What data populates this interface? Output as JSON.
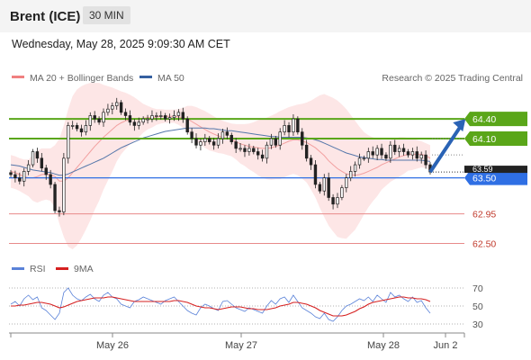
{
  "header": {
    "title": "Brent (ICE)",
    "timeframe": "30 MIN",
    "datetime": "Wednesday, May 28, 2025 9:09:30 AM CET"
  },
  "legend": {
    "ma20": "MA 20 + Bollinger Bands",
    "ma50": "MA 50",
    "credit": "Research © 2025 Trading Central"
  },
  "colors": {
    "green": "#5aa619",
    "blue": "#2f6fe4",
    "red": "#e88a8a",
    "candle_up": "#2f7d2f",
    "candle_down": "#c0392b",
    "band_fill": "#fde3e3",
    "ma50": "#5577aa",
    "ma20": "#f2a0a0",
    "arrow": "#2a63b5"
  },
  "chart_data": [
    {
      "type": "candlestick",
      "series_notes": "Price chart with MA 20, Bollinger Bands, MA 50 and support/resistance levels",
      "ylim": [
        62.3,
        64.8
      ],
      "x_ticks": [
        "May 26",
        "May 27",
        "May 28",
        "Jun 2"
      ],
      "levels": [
        {
          "value": 64.4,
          "label": "64.40",
          "kind": "resistance"
        },
        {
          "value": 64.1,
          "label": "64.10",
          "kind": "resistance"
        },
        {
          "value": 63.5,
          "label": "63.50",
          "kind": "pivot"
        },
        {
          "value": 62.95,
          "label": "62.95",
          "kind": "support"
        },
        {
          "value": 62.5,
          "label": "62.50",
          "kind": "support"
        }
      ],
      "current_price_label": "63.59",
      "close": [
        63.55,
        63.5,
        63.45,
        63.6,
        63.7,
        63.9,
        63.8,
        63.65,
        63.55,
        63.4,
        63.0,
        62.98,
        63.8,
        64.3,
        64.3,
        64.25,
        64.2,
        64.3,
        64.45,
        64.4,
        64.35,
        64.5,
        64.55,
        64.6,
        64.65,
        64.5,
        64.45,
        64.35,
        64.3,
        64.35,
        64.4,
        64.4,
        64.45,
        64.45,
        64.45,
        64.4,
        64.42,
        64.45,
        64.5,
        64.4,
        64.2,
        64.1,
        64.0,
        64.05,
        64.1,
        64.05,
        64.0,
        64.1,
        64.2,
        64.15,
        64.05,
        63.95,
        63.95,
        63.9,
        63.95,
        63.9,
        63.85,
        63.8,
        64.0,
        64.1,
        64.0,
        64.2,
        64.3,
        64.2,
        64.4,
        64.2,
        64.0,
        63.8,
        63.7,
        63.4,
        63.3,
        63.5,
        63.2,
        63.1,
        63.2,
        63.35,
        63.5,
        63.6,
        63.7,
        63.8,
        63.8,
        63.9,
        63.85,
        63.95,
        63.85,
        63.8,
        64.0,
        63.9,
        63.95,
        63.9,
        63.85,
        63.9,
        63.8,
        63.85,
        63.7,
        63.59
      ],
      "ma20": [
        63.6,
        63.58,
        63.55,
        63.52,
        63.5,
        63.5,
        63.52,
        63.55,
        63.56,
        63.55,
        63.52,
        63.45,
        63.45,
        63.5,
        63.58,
        63.66,
        63.74,
        63.82,
        63.9,
        63.98,
        64.05,
        64.12,
        64.18,
        64.24,
        64.3,
        64.34,
        64.37,
        64.39,
        64.4,
        64.4,
        64.41,
        64.42,
        64.42,
        64.43,
        64.44,
        64.44,
        64.44,
        64.44,
        64.43,
        64.42,
        64.4,
        64.36,
        64.32,
        64.28,
        64.24,
        64.2,
        64.17,
        64.14,
        64.12,
        64.1,
        64.08,
        64.05,
        64.02,
        64.0,
        63.98,
        63.97,
        63.96,
        63.95,
        63.95,
        63.96,
        63.98,
        64.0,
        64.03,
        64.06,
        64.08,
        64.08,
        64.06,
        64.04,
        64.0,
        63.96,
        63.9,
        63.84,
        63.76,
        63.7,
        63.64,
        63.6,
        63.56,
        63.55,
        63.54,
        63.55,
        63.57,
        63.6,
        63.63,
        63.66,
        63.7,
        63.73,
        63.76,
        63.79,
        63.82,
        63.84,
        63.86,
        63.86,
        63.86,
        63.86,
        63.84,
        63.8
      ],
      "boll_upper": [
        63.85,
        63.83,
        63.8,
        63.78,
        63.78,
        63.85,
        63.92,
        63.95,
        63.95,
        63.95,
        64.0,
        64.1,
        64.3,
        64.55,
        64.75,
        64.85,
        64.9,
        64.93,
        64.95,
        64.95,
        64.95,
        64.92,
        64.9,
        64.88,
        64.85,
        64.82,
        64.8,
        64.77,
        64.73,
        64.68,
        64.63,
        64.6,
        64.57,
        64.55,
        64.55,
        64.54,
        64.54,
        64.54,
        64.55,
        64.57,
        64.6,
        64.6,
        64.58,
        64.55,
        64.52,
        64.48,
        64.44,
        64.4,
        64.37,
        64.35,
        64.33,
        64.32,
        64.32,
        64.32,
        64.33,
        64.35,
        64.38,
        64.4,
        64.42,
        64.45,
        64.48,
        64.52,
        64.55,
        64.58,
        64.6,
        64.62,
        64.63,
        64.65,
        64.68,
        64.72,
        64.76,
        64.78,
        64.75,
        64.72,
        64.68,
        64.62,
        64.55,
        64.46,
        64.37,
        64.28,
        64.2,
        64.15,
        64.12,
        64.1,
        64.08,
        64.08,
        64.08,
        64.1,
        64.12,
        64.12,
        64.11,
        64.1,
        64.08,
        64.06,
        64.03,
        64.0
      ],
      "boll_lower": [
        63.35,
        63.33,
        63.3,
        63.26,
        63.22,
        63.15,
        63.12,
        63.15,
        63.17,
        63.15,
        63.04,
        62.8,
        62.6,
        62.45,
        62.41,
        62.47,
        62.58,
        62.71,
        62.85,
        63.01,
        63.15,
        63.32,
        63.46,
        63.6,
        63.75,
        63.86,
        63.94,
        64.01,
        64.07,
        64.12,
        64.19,
        64.24,
        64.27,
        64.31,
        64.33,
        64.34,
        64.34,
        64.34,
        64.31,
        64.27,
        64.2,
        64.12,
        64.06,
        64.01,
        63.96,
        63.92,
        63.9,
        63.88,
        63.87,
        63.85,
        63.83,
        63.78,
        63.72,
        63.68,
        63.63,
        63.59,
        63.54,
        63.5,
        63.48,
        63.47,
        63.48,
        63.48,
        63.51,
        63.54,
        63.56,
        63.54,
        63.49,
        63.43,
        63.32,
        63.2,
        63.04,
        62.9,
        62.77,
        62.68,
        62.6,
        62.58,
        62.57,
        62.64,
        62.71,
        62.82,
        62.94,
        63.05,
        63.14,
        63.22,
        63.32,
        63.38,
        63.44,
        63.48,
        63.52,
        63.56,
        63.61,
        63.62,
        63.64,
        63.66,
        63.65,
        63.6
      ],
      "ma50": [
        63.7,
        63.69,
        63.68,
        63.66,
        63.64,
        63.62,
        63.61,
        63.6,
        63.59,
        63.58,
        63.56,
        63.54,
        63.54,
        63.56,
        63.59,
        63.62,
        63.65,
        63.68,
        63.71,
        63.74,
        63.77,
        63.8,
        63.84,
        63.88,
        63.92,
        63.96,
        63.99,
        64.02,
        64.05,
        64.08,
        64.11,
        64.13,
        64.15,
        64.17,
        64.19,
        64.21,
        64.22,
        64.23,
        64.24,
        64.25,
        64.26,
        64.26,
        64.26,
        64.26,
        64.26,
        64.25,
        64.25,
        64.24,
        64.23,
        64.22,
        64.22,
        64.21,
        64.2,
        64.19,
        64.18,
        64.17,
        64.16,
        64.15,
        64.14,
        64.13,
        64.13,
        64.12,
        64.12,
        64.12,
        64.12,
        64.12,
        64.12,
        64.11,
        64.1,
        64.08,
        64.06,
        64.03,
        64.0,
        63.97,
        63.94,
        63.91,
        63.88,
        63.86,
        63.84,
        63.82,
        63.81,
        63.8,
        63.79,
        63.78,
        63.78,
        63.77,
        63.77,
        63.77,
        63.77,
        63.77,
        63.77,
        63.77,
        63.77,
        63.77,
        63.76,
        63.75
      ],
      "arrow": {
        "from_index": 95,
        "from_value": 63.59,
        "to_index": 103,
        "to_value": 64.4
      }
    },
    {
      "type": "line",
      "series": [
        {
          "name": "RSI",
          "values": [
            52,
            55,
            50,
            58,
            62,
            57,
            60,
            48,
            45,
            40,
            35,
            42,
            65,
            70,
            62,
            58,
            56,
            60,
            63,
            58,
            55,
            62,
            65,
            60,
            58,
            52,
            50,
            48,
            55,
            57,
            60,
            58,
            56,
            54,
            52,
            56,
            58,
            60,
            55,
            50,
            45,
            42,
            40,
            48,
            52,
            50,
            47,
            45,
            55,
            56,
            52,
            48,
            46,
            44,
            48,
            46,
            44,
            42,
            50,
            56,
            52,
            58,
            60,
            54,
            62,
            55,
            48,
            45,
            42,
            38,
            36,
            42,
            35,
            33,
            38,
            45,
            50,
            52,
            55,
            58,
            56,
            60,
            55,
            62,
            58,
            54,
            65,
            60,
            62,
            58,
            55,
            60,
            54,
            56,
            48,
            42
          ]
        },
        {
          "name": "9MA",
          "values": [
            50,
            50,
            51,
            51,
            52,
            53,
            54,
            54,
            53,
            52,
            50,
            48,
            49,
            51,
            53,
            55,
            56,
            57,
            58,
            59,
            59,
            59,
            60,
            60,
            59,
            58,
            57,
            56,
            55,
            55,
            55,
            55,
            55,
            55,
            55,
            55,
            55,
            56,
            56,
            55,
            54,
            52,
            50,
            49,
            48,
            48,
            47,
            46,
            47,
            48,
            49,
            49,
            49,
            48,
            47,
            47,
            46,
            46,
            46,
            47,
            48,
            50,
            51,
            52,
            54,
            54,
            53,
            52,
            50,
            48,
            45,
            43,
            41,
            39,
            39,
            39,
            40,
            42,
            44,
            47,
            49,
            52,
            54,
            55,
            56,
            57,
            58,
            59,
            60,
            60,
            59,
            59,
            58,
            58,
            57,
            55
          ]
        }
      ],
      "ylim": [
        20,
        80
      ],
      "y_ticks": [
        70,
        50,
        30
      ],
      "x_ticks": [
        "May 26",
        "May 27",
        "May 28",
        "Jun 2"
      ]
    }
  ]
}
